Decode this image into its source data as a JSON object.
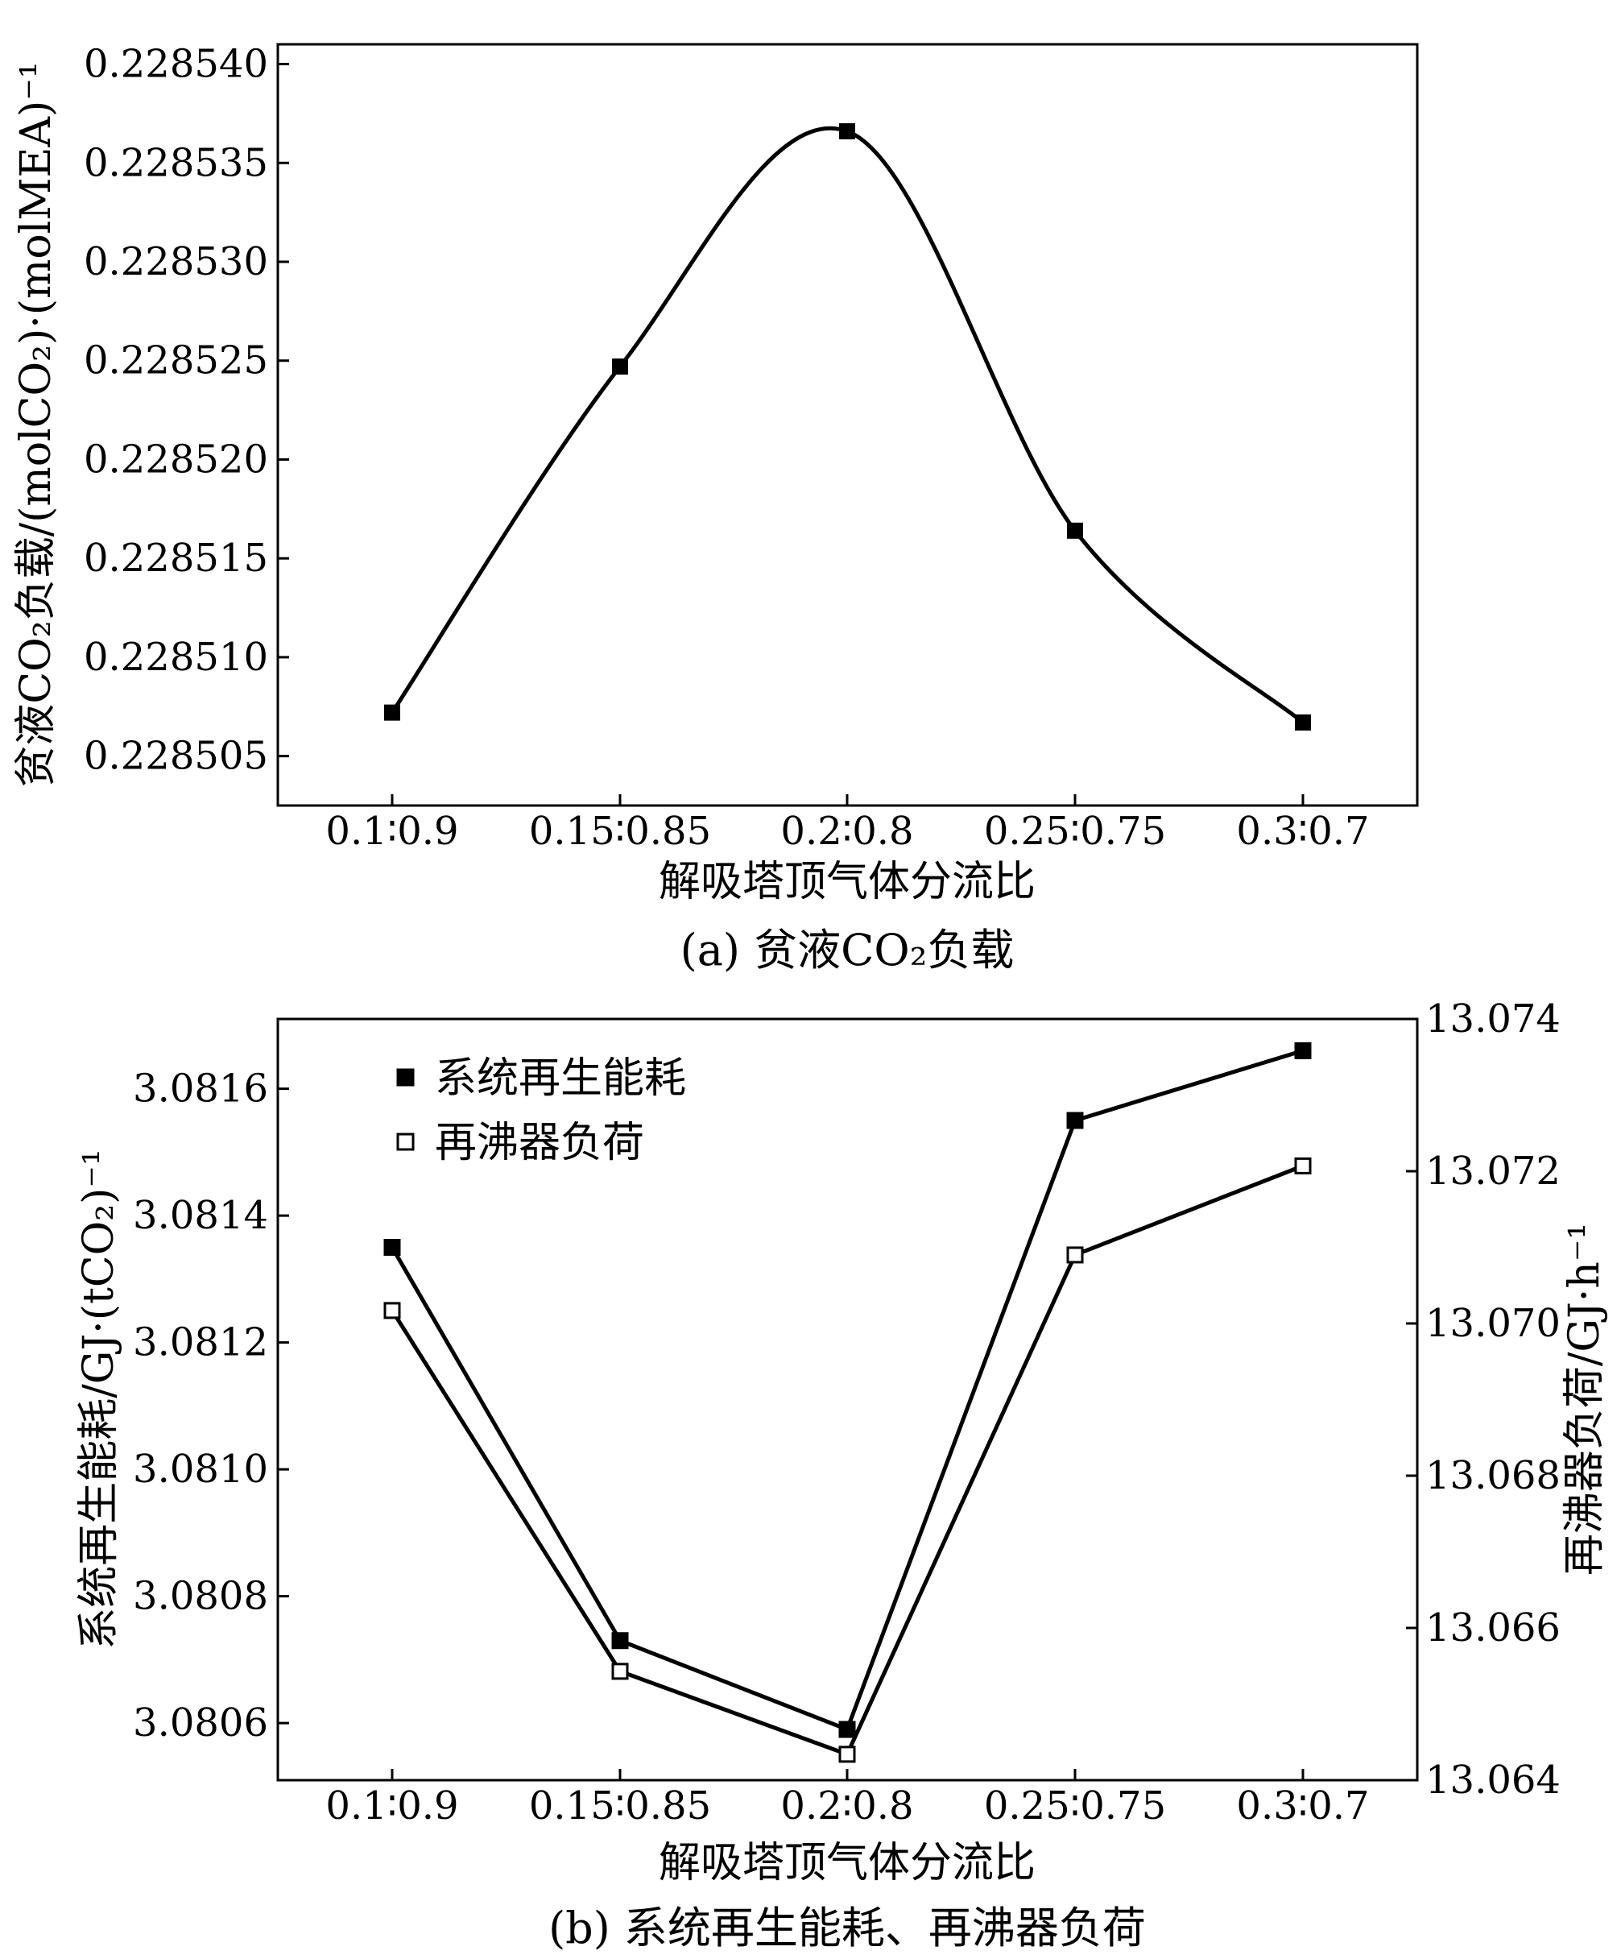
{
  "chart_data": [
    {
      "type": "line",
      "caption": "(a) 贫液CO₂负载",
      "xlabel": "解吸塔顶气体分流比",
      "ylabel": "贫液CO₂负载/(molCO₂)·(molMEA)⁻¹",
      "categories": [
        "0.1∶0.9",
        "0.15∶0.85",
        "0.2∶0.8",
        "0.25∶0.75",
        "0.3∶0.7"
      ],
      "ylim": [
        0.2285025,
        0.228541
      ],
      "yticks": [
        "0.228505",
        "0.228510",
        "0.228515",
        "0.228520",
        "0.228525",
        "0.228530",
        "0.228535",
        "0.228540"
      ],
      "series": [
        {
          "values": [
            0.2285072,
            0.2285247,
            0.2285366,
            0.2285164,
            0.2285067
          ],
          "marker": "filled-square",
          "smooth": true
        }
      ]
    },
    {
      "type": "line",
      "caption": "(b) 系统再生能耗、再沸器负荷",
      "xlabel": "解吸塔顶气体分流比",
      "ylabel_left": "系统再生能耗/GJ·(tCO₂)⁻¹",
      "ylabel_right": "再沸器负荷/GJ·h⁻¹",
      "categories": [
        "0.1∶0.9",
        "0.15∶0.85",
        "0.2∶0.8",
        "0.25∶0.75",
        "0.3∶0.7"
      ],
      "ylim_left": [
        3.08051,
        3.08171
      ],
      "yticks_left": [
        "3.0806",
        "3.0808",
        "3.0810",
        "3.0812",
        "3.0814",
        "3.0816"
      ],
      "ylim_right": [
        13.064,
        13.074
      ],
      "yticks_right": [
        "13.064",
        "13.066",
        "13.068",
        "13.070",
        "13.072",
        "13.074"
      ],
      "legend_position": "top-left",
      "series": [
        {
          "name": "系统再生能耗",
          "axis": "left",
          "marker": "filled-square",
          "values": [
            3.08135,
            3.08073,
            3.08059,
            3.08155,
            3.08166
          ]
        },
        {
          "name": "再沸器负荷",
          "axis": "right",
          "marker": "open-square",
          "values": [
            13.07017,
            13.06543,
            13.06434,
            13.0709,
            13.07207
          ]
        }
      ]
    }
  ]
}
